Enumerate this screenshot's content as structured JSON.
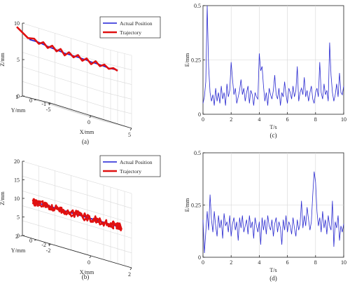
{
  "chart_data": [
    {
      "id": "a",
      "type": "line3d",
      "panel_label": "(a)",
      "xlabel": "X/mm",
      "ylabel": "Y/mm",
      "zlabel": "Z/mm",
      "xticks": [
        "-5",
        "0",
        "5"
      ],
      "yticks": [
        "1",
        "0",
        "-1"
      ],
      "zticks": [
        "10",
        "5",
        "0"
      ],
      "xlim": [
        -5,
        5
      ],
      "ylim": [
        -1,
        1
      ],
      "zlim": [
        0,
        10
      ],
      "grid": true,
      "legend": "top-right",
      "series": [
        {
          "name": "Actual Position",
          "color": "#1f1fd6",
          "width": 1.6,
          "points": [
            [
              -5,
              0.5,
              8.0
            ],
            [
              -4,
              0.4,
              8.0
            ],
            [
              -3,
              0.35,
              7.8
            ],
            [
              -2,
              0.3,
              7.7
            ],
            [
              -1,
              0.3,
              7.6
            ],
            [
              0,
              0.25,
              7.6
            ],
            [
              1,
              0.2,
              7.6
            ],
            [
              2,
              0.15,
              7.5
            ],
            [
              3,
              0.1,
              7.5
            ],
            [
              4,
              0.05,
              7.4
            ],
            [
              5,
              0.0,
              7.5
            ]
          ]
        },
        {
          "name": "Trajectory",
          "color": "#e01010",
          "width": 2.6,
          "lead_in": true,
          "points": [
            [
              -5,
              0.5,
              8.0
            ],
            [
              -4.5,
              0.45,
              8.3
            ],
            [
              -4,
              0.4,
              7.8
            ],
            [
              -3.5,
              0.38,
              8.2
            ],
            [
              -3,
              0.35,
              7.6
            ],
            [
              -2.5,
              0.32,
              8.1
            ],
            [
              -2,
              0.3,
              7.5
            ],
            [
              -1.5,
              0.3,
              8.0
            ],
            [
              -1,
              0.3,
              7.3
            ],
            [
              -0.5,
              0.28,
              7.9
            ],
            [
              0,
              0.25,
              7.4
            ],
            [
              0.5,
              0.22,
              7.9
            ],
            [
              1,
              0.2,
              7.3
            ],
            [
              1.5,
              0.18,
              7.8
            ],
            [
              2,
              0.15,
              7.2
            ],
            [
              2.5,
              0.12,
              7.8
            ],
            [
              3,
              0.1,
              7.3
            ],
            [
              3.5,
              0.08,
              7.7
            ],
            [
              4,
              0.05,
              7.3
            ],
            [
              4.5,
              0.02,
              7.6
            ],
            [
              5,
              0.0,
              7.4
            ]
          ]
        }
      ]
    },
    {
      "id": "c",
      "type": "line",
      "panel_label": "(c)",
      "xlabel": "T/s",
      "ylabel": "E/mm",
      "xlim": [
        0,
        10
      ],
      "ylim": [
        0,
        0.5
      ],
      "xticks": [
        "0",
        "2",
        "4",
        "6",
        "8",
        "10"
      ],
      "yticks": [
        "0",
        "0.25",
        "0.5"
      ],
      "grid": true,
      "series": [
        {
          "color": "#2a2ad0",
          "x": [
            0,
            0.1,
            0.2,
            0.3,
            0.4,
            0.5,
            0.6,
            0.7,
            0.8,
            0.9,
            1.0,
            1.1,
            1.2,
            1.3,
            1.4,
            1.5,
            1.6,
            1.7,
            1.8,
            1.9,
            2.0,
            2.1,
            2.2,
            2.3,
            2.4,
            2.5,
            2.6,
            2.7,
            2.8,
            2.9,
            3.0,
            3.1,
            3.2,
            3.3,
            3.4,
            3.5,
            3.6,
            3.7,
            3.8,
            3.9,
            4.0,
            4.1,
            4.2,
            4.3,
            4.4,
            4.5,
            4.6,
            4.7,
            4.8,
            4.9,
            5.0,
            5.1,
            5.2,
            5.3,
            5.4,
            5.5,
            5.6,
            5.7,
            5.8,
            5.9,
            6.0,
            6.1,
            6.2,
            6.3,
            6.4,
            6.5,
            6.6,
            6.7,
            6.8,
            6.9,
            7.0,
            7.1,
            7.2,
            7.3,
            7.4,
            7.5,
            7.6,
            7.7,
            7.8,
            7.9,
            8.0,
            8.1,
            8.2,
            8.3,
            8.4,
            8.5,
            8.6,
            8.7,
            8.8,
            8.9,
            9.0,
            9.1,
            9.2,
            9.3,
            9.4,
            9.5,
            9.6,
            9.7,
            9.8,
            9.9,
            10.0
          ],
          "y": [
            0.05,
            0.08,
            0.15,
            0.5,
            0.22,
            0.1,
            0.06,
            0.09,
            0.04,
            0.12,
            0.06,
            0.1,
            0.05,
            0.13,
            0.07,
            0.1,
            0.04,
            0.14,
            0.08,
            0.11,
            0.24,
            0.16,
            0.09,
            0.12,
            0.05,
            0.08,
            0.11,
            0.16,
            0.09,
            0.12,
            0.06,
            0.1,
            0.13,
            0.05,
            0.11,
            0.09,
            0.04,
            0.1,
            0.08,
            0.07,
            0.28,
            0.2,
            0.22,
            0.13,
            0.06,
            0.1,
            0.04,
            0.12,
            0.09,
            0.07,
            0.11,
            0.18,
            0.09,
            0.07,
            0.12,
            0.04,
            0.1,
            0.08,
            0.15,
            0.09,
            0.05,
            0.12,
            0.1,
            0.07,
            0.13,
            0.08,
            0.11,
            0.22,
            0.06,
            0.1,
            0.12,
            0.09,
            0.17,
            0.08,
            0.11,
            0.06,
            0.1,
            0.13,
            0.07,
            0.05,
            0.1,
            0.12,
            0.08,
            0.24,
            0.1,
            0.07,
            0.14,
            0.09,
            0.11,
            0.06,
            0.33,
            0.18,
            0.1,
            0.06,
            0.09,
            0.14,
            0.08,
            0.19,
            0.1,
            0.09,
            0.13
          ]
        }
      ]
    },
    {
      "id": "b",
      "type": "line3d",
      "panel_label": "(b)",
      "xlabel": "X/mm",
      "ylabel": "Y/mm",
      "zlabel": "Z/mm",
      "xticks": [
        "-2",
        "0",
        "2"
      ],
      "yticks": [
        "2",
        "0",
        "-2"
      ],
      "zticks": [
        "20",
        "15",
        "10",
        "5",
        "0"
      ],
      "xlim": [
        -2,
        2
      ],
      "ylim": [
        -2,
        2
      ],
      "zlim": [
        0,
        20
      ],
      "grid": true,
      "legend": "top-right",
      "series": [
        {
          "name": "Actual Position",
          "color": "#1f1fd6",
          "width": 1.6,
          "circle": {
            "r": 2,
            "z": 10
          }
        },
        {
          "name": "Trajectory",
          "color": "#e01010",
          "width": 2.6,
          "circle": {
            "r": 2,
            "z": 10,
            "noise": 0.5
          }
        }
      ]
    },
    {
      "id": "d",
      "type": "line",
      "panel_label": "(d)",
      "xlabel": "T/s",
      "ylabel": "E/mm",
      "xlim": [
        0,
        10
      ],
      "ylim": [
        0,
        0.5
      ],
      "xticks": [
        "0",
        "2",
        "4",
        "6",
        "8",
        "10"
      ],
      "yticks": [
        "0",
        "0.25",
        "0.5"
      ],
      "grid": true,
      "series": [
        {
          "color": "#2a2ad0",
          "x": [
            0,
            0.1,
            0.2,
            0.3,
            0.4,
            0.5,
            0.6,
            0.7,
            0.8,
            0.9,
            1.0,
            1.1,
            1.2,
            1.3,
            1.4,
            1.5,
            1.6,
            1.7,
            1.8,
            1.9,
            2.0,
            2.1,
            2.2,
            2.3,
            2.4,
            2.5,
            2.6,
            2.7,
            2.8,
            2.9,
            3.0,
            3.1,
            3.2,
            3.3,
            3.4,
            3.5,
            3.6,
            3.7,
            3.8,
            3.9,
            4.0,
            4.1,
            4.2,
            4.3,
            4.4,
            4.5,
            4.6,
            4.7,
            4.8,
            4.9,
            5.0,
            5.1,
            5.2,
            5.3,
            5.4,
            5.5,
            5.6,
            5.7,
            5.8,
            5.9,
            6.0,
            6.1,
            6.2,
            6.3,
            6.4,
            6.5,
            6.6,
            6.7,
            6.8,
            6.9,
            7.0,
            7.1,
            7.2,
            7.3,
            7.4,
            7.5,
            7.6,
            7.7,
            7.8,
            7.9,
            8.0,
            8.1,
            8.2,
            8.3,
            8.4,
            8.5,
            8.6,
            8.7,
            8.8,
            8.9,
            9.0,
            9.1,
            9.2,
            9.3,
            9.4,
            9.5,
            9.6,
            9.7,
            9.8,
            9.9,
            10.0
          ],
          "y": [
            0.18,
            0.02,
            0.12,
            0.22,
            0.13,
            0.3,
            0.18,
            0.12,
            0.22,
            0.15,
            0.1,
            0.2,
            0.14,
            0.18,
            0.09,
            0.21,
            0.15,
            0.17,
            0.12,
            0.2,
            0.1,
            0.16,
            0.19,
            0.13,
            0.17,
            0.08,
            0.19,
            0.14,
            0.2,
            0.12,
            0.15,
            0.18,
            0.11,
            0.2,
            0.14,
            0.17,
            0.09,
            0.19,
            0.15,
            0.12,
            0.17,
            0.06,
            0.19,
            0.13,
            0.18,
            0.11,
            0.2,
            0.15,
            0.13,
            0.18,
            0.1,
            0.16,
            0.19,
            0.12,
            0.17,
            0.14,
            0.06,
            0.18,
            0.13,
            0.2,
            0.12,
            0.17,
            0.15,
            0.11,
            0.19,
            0.14,
            0.1,
            0.18,
            0.13,
            0.16,
            0.27,
            0.14,
            0.2,
            0.15,
            0.24,
            0.18,
            0.13,
            0.17,
            0.3,
            0.41,
            0.36,
            0.22,
            0.15,
            0.19,
            0.12,
            0.22,
            0.14,
            0.18,
            0.11,
            0.2,
            0.15,
            0.13,
            0.27,
            0.05,
            0.17,
            0.14,
            0.2,
            0.08,
            0.15,
            0.12,
            0.16
          ]
        }
      ]
    }
  ]
}
